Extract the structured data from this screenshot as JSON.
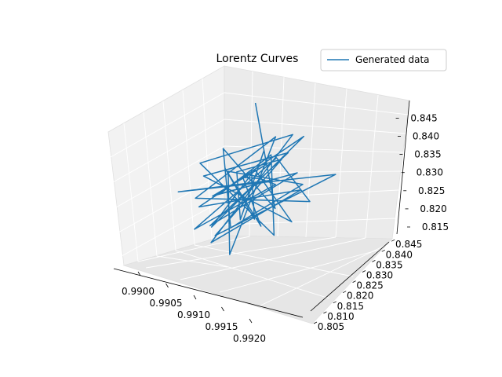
{
  "chart_data": {
    "type": "line",
    "projection": "3d",
    "title": "Lorentz Curves",
    "legend": {
      "placement": "top-right",
      "entries": [
        "Generated data"
      ]
    },
    "grid": true,
    "series": [
      {
        "name": "Generated data",
        "color": "#1f77b4",
        "points": [
          [
            0.991,
            0.83,
            0.845
          ],
          [
            0.9912,
            0.828,
            0.832
          ],
          [
            0.9907,
            0.82,
            0.825
          ],
          [
            0.9915,
            0.832,
            0.83
          ],
          [
            0.9908,
            0.815,
            0.82
          ],
          [
            0.9913,
            0.835,
            0.833
          ],
          [
            0.9905,
            0.823,
            0.828
          ],
          [
            0.9918,
            0.818,
            0.824
          ],
          [
            0.9911,
            0.826,
            0.831
          ],
          [
            0.9909,
            0.812,
            0.821
          ],
          [
            0.9914,
            0.839,
            0.836
          ],
          [
            0.9906,
            0.817,
            0.823
          ],
          [
            0.9916,
            0.83,
            0.827
          ],
          [
            0.991,
            0.808,
            0.819
          ],
          [
            0.9912,
            0.841,
            0.835
          ],
          [
            0.9904,
            0.825,
            0.83
          ],
          [
            0.9917,
            0.813,
            0.822
          ],
          [
            0.9911,
            0.834,
            0.832
          ],
          [
            0.9908,
            0.82,
            0.826
          ],
          [
            0.9913,
            0.827,
            0.829
          ],
          [
            0.9903,
            0.818,
            0.825
          ],
          [
            0.9919,
            0.836,
            0.83
          ],
          [
            0.991,
            0.81,
            0.82
          ],
          [
            0.9914,
            0.828,
            0.834
          ],
          [
            0.9907,
            0.832,
            0.827
          ],
          [
            0.9912,
            0.815,
            0.823
          ],
          [
            0.9909,
            0.838,
            0.831
          ],
          [
            0.9915,
            0.821,
            0.825
          ],
          [
            0.9906,
            0.829,
            0.833
          ],
          [
            0.9911,
            0.814,
            0.821
          ],
          [
            0.9916,
            0.831,
            0.828
          ],
          [
            0.9908,
            0.824,
            0.83
          ],
          [
            0.9913,
            0.806,
            0.818
          ],
          [
            0.991,
            0.84,
            0.834
          ],
          [
            0.9905,
            0.819,
            0.824
          ],
          [
            0.9918,
            0.827,
            0.826
          ],
          [
            0.9912,
            0.833,
            0.832
          ],
          [
            0.9907,
            0.811,
            0.82
          ],
          [
            0.9914,
            0.825,
            0.829
          ],
          [
            0.9909,
            0.836,
            0.825
          ],
          [
            0.9911,
            0.82,
            0.831
          ],
          [
            0.9915,
            0.814,
            0.823
          ],
          [
            0.9906,
            0.83,
            0.828
          ],
          [
            0.9912,
            0.822,
            0.821
          ],
          [
            0.991,
            0.828,
            0.83
          ]
        ]
      }
    ]
  }
}
